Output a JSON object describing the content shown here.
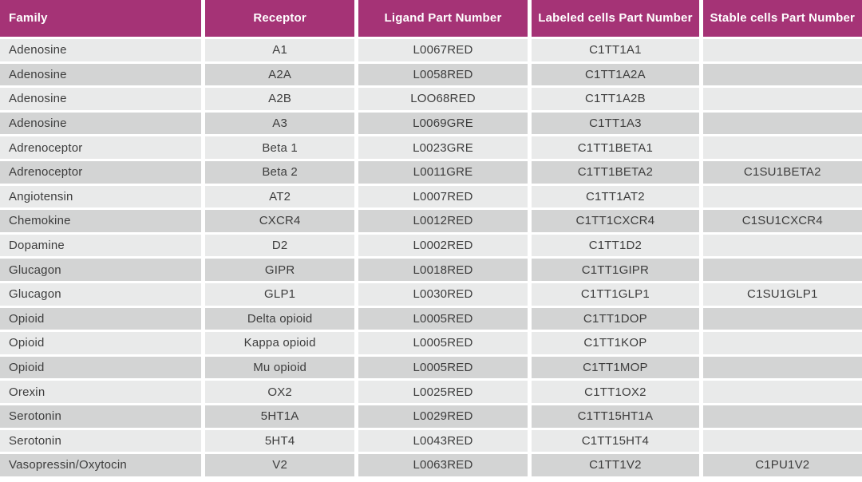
{
  "table": {
    "columns": [
      {
        "label": "Family",
        "align": "left"
      },
      {
        "label": "Receptor",
        "align": "center"
      },
      {
        "label": "Ligand Part Number",
        "align": "center"
      },
      {
        "label": "Labeled cells Part Number",
        "align": "center"
      },
      {
        "label": "Stable cells Part Number",
        "align": "center"
      }
    ],
    "rows": [
      [
        "Adenosine",
        "A1",
        "L0067RED",
        "C1TT1A1",
        ""
      ],
      [
        "Adenosine",
        "A2A",
        "L0058RED",
        "C1TT1A2A",
        ""
      ],
      [
        "Adenosine",
        "A2B",
        "LOO68RED",
        "C1TT1A2B",
        ""
      ],
      [
        "Adenosine",
        "A3",
        "L0069GRE",
        "C1TT1A3",
        ""
      ],
      [
        "Adrenoceptor",
        "Beta 1",
        "L0023GRE",
        "C1TT1BETA1",
        ""
      ],
      [
        "Adrenoceptor",
        "Beta 2",
        "L0011GRE",
        "C1TT1BETA2",
        "C1SU1BETA2"
      ],
      [
        "Angiotensin",
        "AT2",
        "L0007RED",
        "C1TT1AT2",
        ""
      ],
      [
        "Chemokine",
        "CXCR4",
        "L0012RED",
        "C1TT1CXCR4",
        "C1SU1CXCR4"
      ],
      [
        "Dopamine",
        "D2",
        "L0002RED",
        "C1TT1D2",
        ""
      ],
      [
        "Glucagon",
        "GIPR",
        "L0018RED",
        "C1TT1GIPR",
        ""
      ],
      [
        "Glucagon",
        "GLP1",
        "L0030RED",
        "C1TT1GLP1",
        "C1SU1GLP1"
      ],
      [
        "Opioid",
        "Delta opioid",
        "L0005RED",
        "C1TT1DOP",
        ""
      ],
      [
        "Opioid",
        "Kappa opioid",
        "L0005RED",
        "C1TT1KOP",
        ""
      ],
      [
        "Opioid",
        "Mu opioid",
        "L0005RED",
        "C1TT1MOP",
        ""
      ],
      [
        "Orexin",
        "OX2",
        "L0025RED",
        "C1TT1OX2",
        ""
      ],
      [
        "Serotonin",
        "5HT1A",
        "L0029RED",
        "C1TT15HT1A",
        ""
      ],
      [
        "Serotonin",
        "5HT4",
        "L0043RED",
        "C1TT15HT4",
        ""
      ],
      [
        "Vasopressin/Oxytocin",
        "V2",
        "L0063RED",
        "C1TT1V2",
        "C1PU1V2"
      ]
    ]
  },
  "colors": {
    "header_bg": "#a53376",
    "header_text": "#ffffff",
    "row_light": "#e9eaea",
    "row_dark": "#d3d4d4",
    "cell_text": "#3d3d3d",
    "separator": "#ffffff"
  }
}
